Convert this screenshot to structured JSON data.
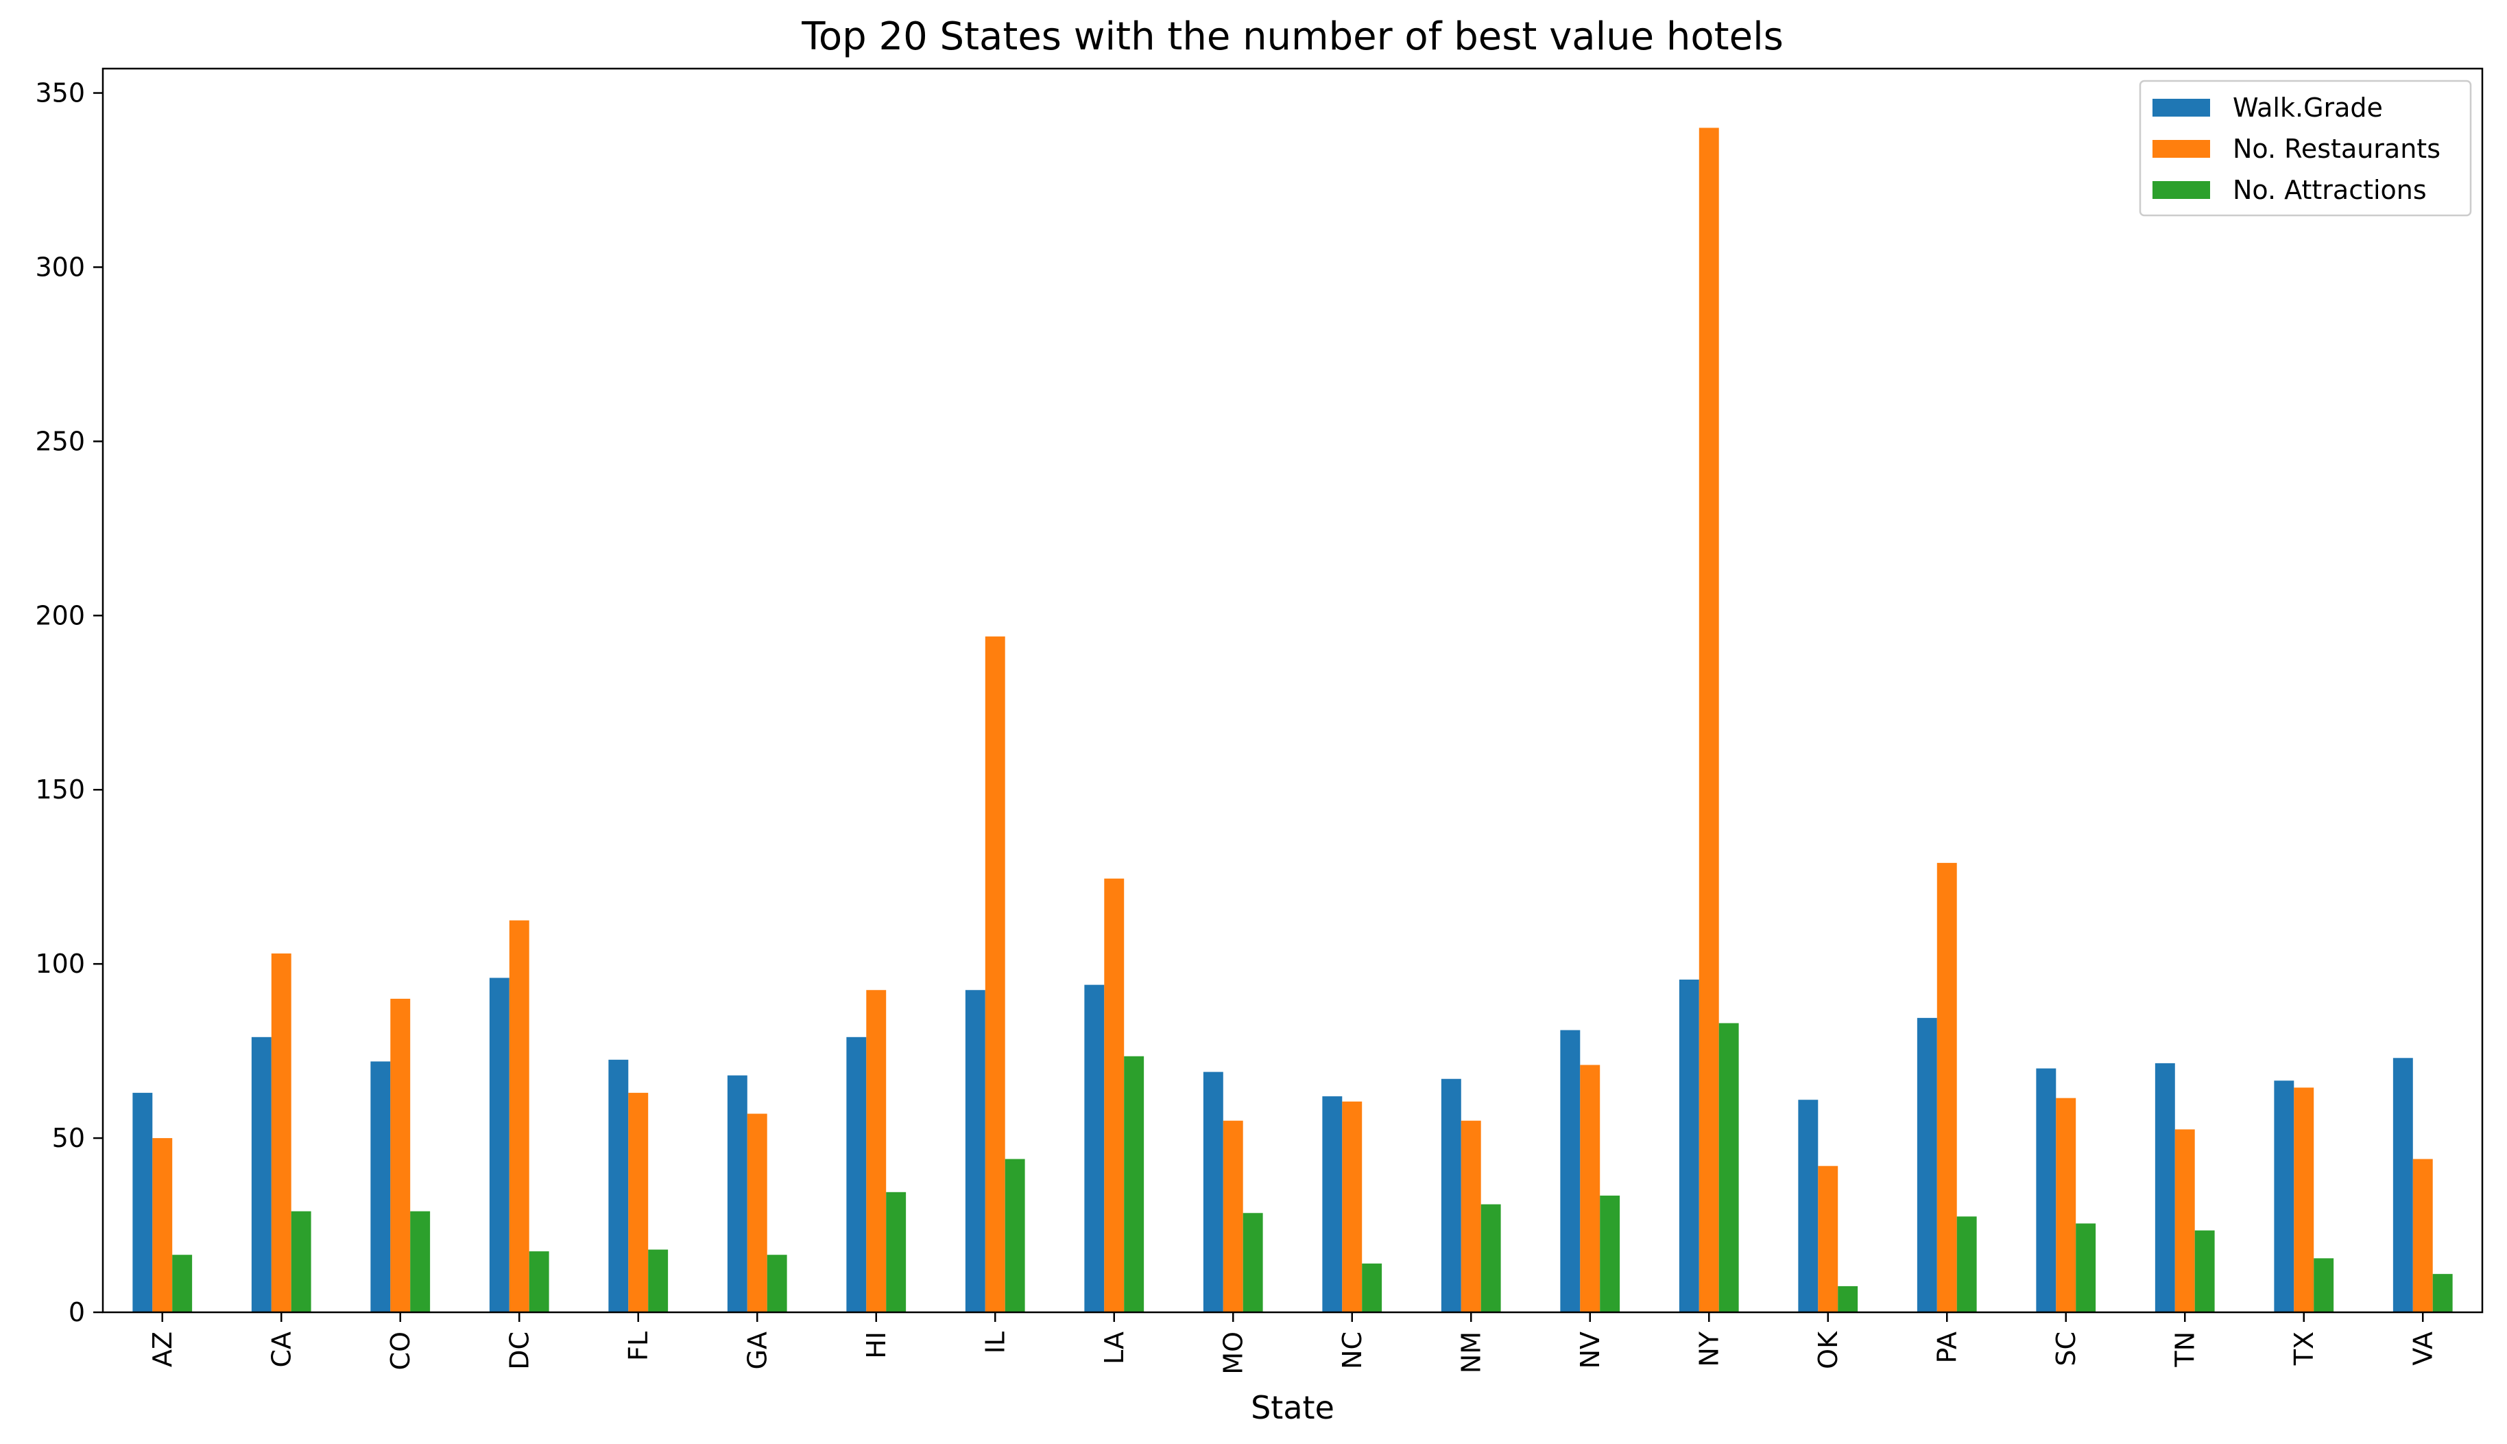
{
  "chart_data": {
    "type": "bar",
    "title": "Top 20 States with the number of best value hotels",
    "xlabel": "State",
    "ylabel": "",
    "ylim": [
      0,
      357
    ],
    "yticks": [
      0,
      50,
      100,
      150,
      200,
      250,
      300,
      350
    ],
    "grid": false,
    "legend_position": "top-right",
    "categories": [
      "AZ",
      "CA",
      "CO",
      "DC",
      "FL",
      "GA",
      "HI",
      "IL",
      "LA",
      "MO",
      "NC",
      "NM",
      "NV",
      "NY",
      "OK",
      "PA",
      "SC",
      "TN",
      "TX",
      "VA"
    ],
    "series": [
      {
        "name": "Walk.Grade",
        "color": "#1f77b4",
        "values": [
          63,
          79,
          72,
          96,
          72.5,
          68,
          79,
          92.5,
          94,
          69,
          62,
          67,
          81,
          95.5,
          61,
          84.5,
          70,
          71.5,
          66.5,
          73
        ]
      },
      {
        "name": "No. Restaurants",
        "color": "#ff7f0e",
        "values": [
          50,
          103,
          90,
          112.5,
          63,
          57,
          92.5,
          194,
          124.5,
          55,
          60.5,
          55,
          71,
          340,
          42,
          129,
          61.5,
          52.5,
          64.5,
          44
        ]
      },
      {
        "name": "No. Attractions",
        "color": "#2ca02c",
        "values": [
          16.5,
          29,
          29,
          17.5,
          18,
          16.5,
          34.5,
          44,
          73.5,
          28.5,
          14,
          31,
          33.5,
          83,
          7.5,
          27.5,
          25.5,
          23.5,
          15.5,
          11
        ]
      }
    ]
  }
}
